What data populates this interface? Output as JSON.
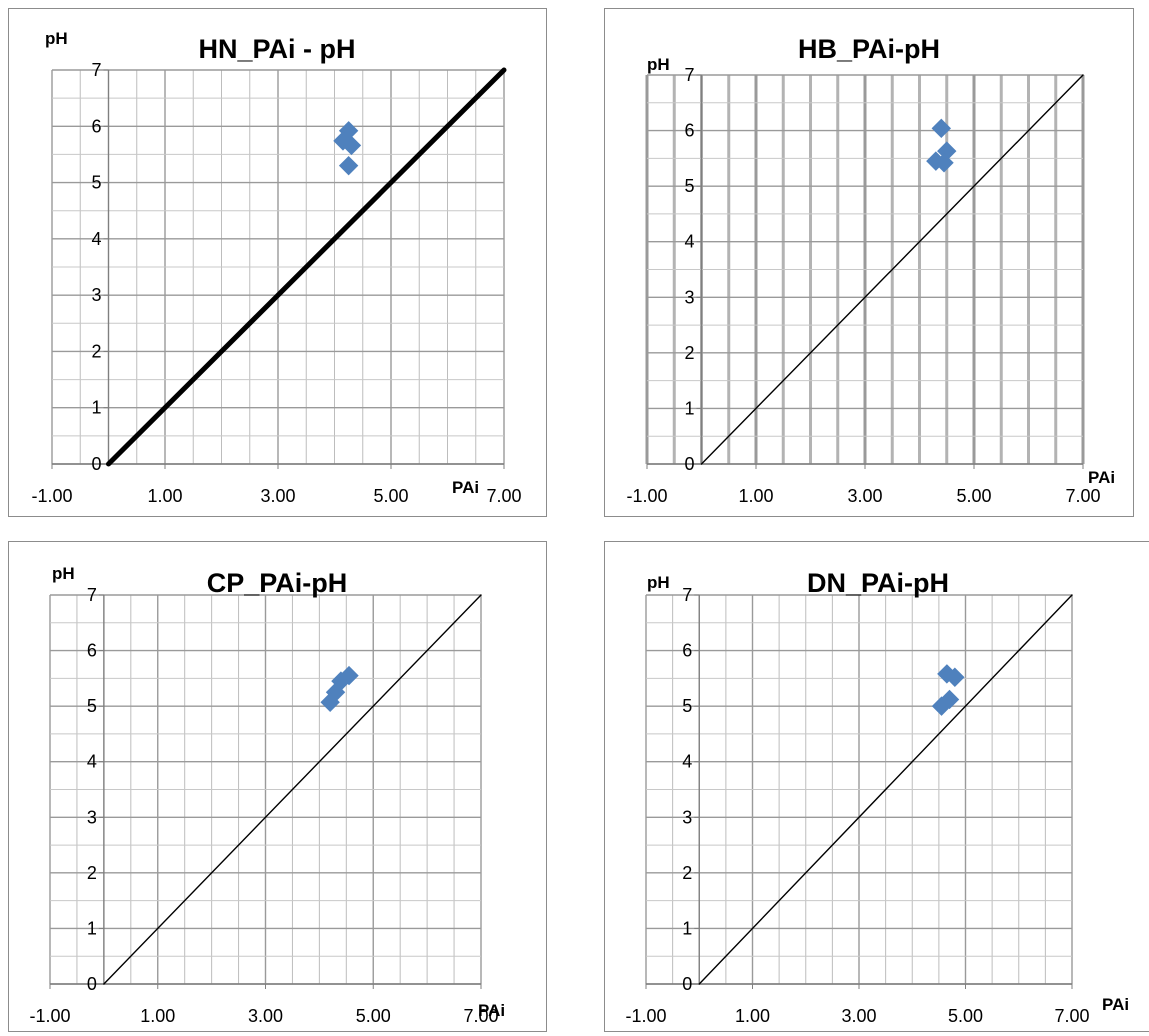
{
  "chart_data": [
    {
      "type": "scatter",
      "title": "HN_PAi - pH",
      "xlabel": "PAi",
      "ylabel": "pH",
      "xlim": [
        -1,
        7
      ],
      "ylim": [
        0,
        7
      ],
      "x_ticks": [
        "-1.00",
        "1.00",
        "3.00",
        "5.00",
        "7.00"
      ],
      "y_ticks": [
        "0",
        "1",
        "2",
        "3",
        "4",
        "5",
        "6",
        "7"
      ],
      "grid": true,
      "reference_line": {
        "from": [
          0,
          0
        ],
        "to": [
          7,
          7
        ],
        "style": "thick"
      },
      "series": [
        {
          "points": [
            [
              4.25,
              5.92
            ],
            [
              4.15,
              5.74
            ],
            [
              4.3,
              5.66
            ],
            [
              4.25,
              5.3
            ]
          ]
        }
      ],
      "marker_color": "#4f81bd"
    },
    {
      "type": "scatter",
      "title": "HB_PAi-pH",
      "xlabel": "PAi",
      "ylabel": "pH",
      "xlim": [
        -1,
        7
      ],
      "ylim": [
        0,
        7
      ],
      "x_ticks": [
        "-1.00",
        "1.00",
        "3.00",
        "5.00",
        "7.00"
      ],
      "y_ticks": [
        "0",
        "1",
        "2",
        "3",
        "4",
        "5",
        "6",
        "7"
      ],
      "grid": true,
      "reference_line": {
        "from": [
          0,
          0
        ],
        "to": [
          7,
          7
        ],
        "style": "thin"
      },
      "series": [
        {
          "points": [
            [
              4.4,
              6.04
            ],
            [
              4.5,
              5.63
            ],
            [
              4.3,
              5.45
            ],
            [
              4.45,
              5.42
            ]
          ]
        }
      ],
      "marker_color": "#4f81bd"
    },
    {
      "type": "scatter",
      "title": "CP_PAi-pH",
      "xlabel": "PAi",
      "ylabel": "pH",
      "xlim": [
        -1,
        7
      ],
      "ylim": [
        0,
        7
      ],
      "x_ticks": [
        "-1.00",
        "1.00",
        "3.00",
        "5.00",
        "7.00"
      ],
      "y_ticks": [
        "0",
        "1",
        "2",
        "3",
        "4",
        "5",
        "6",
        "7"
      ],
      "grid": true,
      "reference_line": {
        "from": [
          0,
          0
        ],
        "to": [
          7,
          7
        ],
        "style": "thin"
      },
      "series": [
        {
          "points": [
            [
              4.55,
              5.55
            ],
            [
              4.4,
              5.45
            ],
            [
              4.3,
              5.25
            ],
            [
              4.2,
              5.07
            ]
          ]
        }
      ],
      "marker_color": "#4f81bd"
    },
    {
      "type": "scatter",
      "title": "DN_PAi-pH",
      "xlabel": "PAi",
      "ylabel": "pH",
      "xlim": [
        -1,
        7
      ],
      "ylim": [
        0,
        7
      ],
      "x_ticks": [
        "-1.00",
        "1.00",
        "3.00",
        "5.00",
        "7.00"
      ],
      "y_ticks": [
        "0",
        "1",
        "2",
        "3",
        "4",
        "5",
        "6",
        "7"
      ],
      "grid": true,
      "reference_line": {
        "from": [
          0,
          0
        ],
        "to": [
          7,
          7
        ],
        "style": "thin"
      },
      "series": [
        {
          "points": [
            [
              4.65,
              5.58
            ],
            [
              4.8,
              5.52
            ],
            [
              4.7,
              5.12
            ],
            [
              4.55,
              5.0
            ]
          ]
        }
      ],
      "marker_color": "#4f81bd"
    }
  ]
}
